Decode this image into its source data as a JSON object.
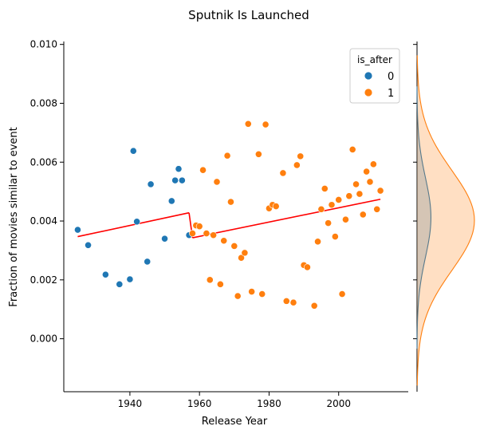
{
  "chart_data": {
    "type": "scatter",
    "title": "Sputnik Is Launched",
    "xlabel": "Release Year",
    "ylabel": "Fraction of movies similar to event",
    "xlim": [
      1921,
      2020
    ],
    "ylim": [
      -0.0018,
      0.0101
    ],
    "x_ticks": [
      1940,
      1960,
      1980,
      2000
    ],
    "y_ticks": [
      0.0,
      0.002,
      0.004,
      0.006,
      0.008,
      0.01
    ],
    "y_tick_labels": [
      "0.000",
      "0.002",
      "0.004",
      "0.006",
      "0.008",
      "0.010"
    ],
    "grid": false,
    "legend": {
      "title": "is_after",
      "position": "top-right",
      "entries": [
        {
          "label": "0",
          "color": "#1f77b4"
        },
        {
          "label": "1",
          "color": "#ff7f0e"
        }
      ]
    },
    "series": [
      {
        "name": "0",
        "color": "#1f77b4",
        "points": [
          [
            1925,
            0.0037
          ],
          [
            1928,
            0.00318
          ],
          [
            1933,
            0.00218
          ],
          [
            1937,
            0.00185
          ],
          [
            1940,
            0.00202
          ],
          [
            1941,
            0.00638
          ],
          [
            1942,
            0.00398
          ],
          [
            1945,
            0.00262
          ],
          [
            1946,
            0.00525
          ],
          [
            1950,
            0.0034
          ],
          [
            1952,
            0.00468
          ],
          [
            1953,
            0.00538
          ],
          [
            1954,
            0.00577
          ],
          [
            1955,
            0.00538
          ],
          [
            1957,
            0.00352
          ]
        ]
      },
      {
        "name": "1",
        "color": "#ff7f0e",
        "points": [
          [
            1958,
            0.00358
          ],
          [
            1959,
            0.00385
          ],
          [
            1960,
            0.00382
          ],
          [
            1961,
            0.00573
          ],
          [
            1962,
            0.00358
          ],
          [
            1963,
            0.002
          ],
          [
            1964,
            0.00352
          ],
          [
            1965,
            0.00533
          ],
          [
            1966,
            0.00185
          ],
          [
            1967,
            0.00333
          ],
          [
            1968,
            0.00622
          ],
          [
            1969,
            0.00465
          ],
          [
            1970,
            0.00315
          ],
          [
            1971,
            0.00145
          ],
          [
            1972,
            0.00275
          ],
          [
            1973,
            0.00292
          ],
          [
            1974,
            0.0073
          ],
          [
            1975,
            0.0016
          ],
          [
            1977,
            0.00627
          ],
          [
            1978,
            0.00152
          ],
          [
            1979,
            0.00728
          ],
          [
            1980,
            0.00443
          ],
          [
            1981,
            0.00455
          ],
          [
            1982,
            0.0045
          ],
          [
            1984,
            0.00563
          ],
          [
            1985,
            0.00128
          ],
          [
            1987,
            0.00123
          ],
          [
            1988,
            0.0059
          ],
          [
            1989,
            0.0062
          ],
          [
            1990,
            0.0025
          ],
          [
            1991,
            0.00243
          ],
          [
            1993,
            0.00112
          ],
          [
            1994,
            0.0033
          ],
          [
            1995,
            0.0044
          ],
          [
            1996,
            0.0051
          ],
          [
            1997,
            0.00393
          ],
          [
            1998,
            0.00455
          ],
          [
            1999,
            0.00347
          ],
          [
            2000,
            0.00472
          ],
          [
            2001,
            0.00152
          ],
          [
            2002,
            0.00405
          ],
          [
            2003,
            0.00485
          ],
          [
            2004,
            0.00643
          ],
          [
            2005,
            0.00525
          ],
          [
            2006,
            0.00492
          ],
          [
            2007,
            0.00422
          ],
          [
            2008,
            0.00568
          ],
          [
            2009,
            0.00533
          ],
          [
            2010,
            0.00593
          ],
          [
            2011,
            0.0044
          ],
          [
            2012,
            0.00503
          ]
        ]
      }
    ],
    "fit_lines": [
      {
        "color": "#ff0000",
        "points": [
          [
            1925,
            0.00347
          ],
          [
            1957,
            0.00428
          ]
        ]
      },
      {
        "color": "#ff0000",
        "points": [
          [
            1957,
            0.00428
          ],
          [
            1958,
            0.00343
          ]
        ]
      },
      {
        "color": "#ff0000",
        "points": [
          [
            1958,
            0.00343
          ],
          [
            2012,
            0.00474
          ]
        ]
      }
    ],
    "marginal_kde": {
      "position": "right",
      "series": [
        {
          "name": "0",
          "color": "#1f77b4",
          "mean": 0.00412,
          "sd": 0.00135,
          "peak": 0.63
        },
        {
          "name": "1",
          "color": "#ff7f0e",
          "mean": 0.00402,
          "sd": 0.0017,
          "peak": 2.6
        }
      ]
    }
  }
}
